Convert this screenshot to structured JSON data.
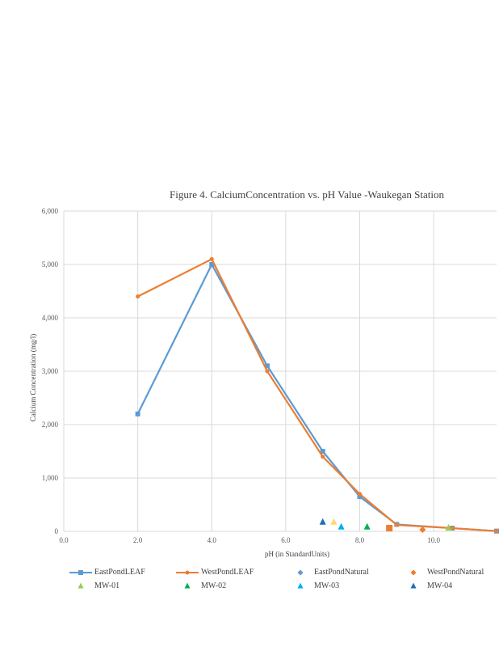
{
  "chart_data": {
    "type": "line",
    "title": "Figure 4. CalciumConcentration  vs. pH Value  -Waukegan   Station",
    "xlabel": "pH (in StandardUnits)",
    "ylabel": "Calcium Concentration  (mg/l)",
    "xlim": [
      0,
      11.7
    ],
    "ylim": [
      0,
      6000
    ],
    "x_ticks": [
      0,
      2,
      4,
      6,
      8,
      10
    ],
    "x_tick_labels": [
      "0.0",
      "2.0",
      "4.0",
      "6.0",
      "8.0",
      "10.0"
    ],
    "y_ticks": [
      0,
      1000,
      2000,
      3000,
      4000,
      5000,
      6000
    ],
    "y_tick_labels": [
      "0",
      "1,000",
      "2,000",
      "3,000",
      "4,000",
      "5,000",
      "6,000"
    ],
    "grid": true,
    "legend_position": "bottom",
    "series": [
      {
        "name": "EastPondLEAF",
        "kind": "line",
        "marker": "square",
        "color": "#5B9BD5",
        "points": [
          [
            2.0,
            2200
          ],
          [
            4.0,
            5000
          ],
          [
            5.5,
            3100
          ],
          [
            7.0,
            1500
          ],
          [
            8.0,
            650
          ],
          [
            9.0,
            130
          ],
          [
            10.5,
            60
          ],
          [
            11.7,
            5
          ]
        ]
      },
      {
        "name": "WestPondLEAF",
        "kind": "line",
        "marker": "circle",
        "color": "#ED7D31",
        "points": [
          [
            2.0,
            4400
          ],
          [
            4.0,
            5100
          ],
          [
            5.5,
            3000
          ],
          [
            7.0,
            1400
          ],
          [
            8.0,
            700
          ],
          [
            9.0,
            120
          ],
          [
            10.5,
            60
          ],
          [
            11.7,
            5
          ]
        ]
      },
      {
        "name": "EastPondNatural",
        "kind": "scatter",
        "marker": "diamond",
        "color": "#5B9BD5",
        "points": [
          [
            8.8,
            60
          ]
        ]
      },
      {
        "name": "WestPondNatural",
        "kind": "scatter",
        "marker": "diamond",
        "color": "#ED7D31",
        "points": [
          [
            9.7,
            30
          ]
        ]
      },
      {
        "name": "MW-01",
        "kind": "scatter",
        "marker": "triangle",
        "color": "#92D050",
        "points": [
          [
            10.4,
            60
          ]
        ]
      },
      {
        "name": "MW-02",
        "kind": "scatter",
        "marker": "triangle",
        "color": "#00B050",
        "points": [
          [
            8.2,
            80
          ]
        ]
      },
      {
        "name": "MW-03",
        "kind": "scatter",
        "marker": "triangle",
        "color": "#00B0F0",
        "points": [
          [
            7.5,
            80
          ]
        ]
      },
      {
        "name": "MW-04",
        "kind": "scatter",
        "marker": "triangle",
        "color": "#1F6EB4",
        "points": [
          [
            7.0,
            170
          ]
        ]
      },
      {
        "name": "",
        "kind": "scatter",
        "marker": "triangle",
        "color": "#FFD966",
        "legend": false,
        "points": [
          [
            7.3,
            170
          ]
        ]
      },
      {
        "name": "",
        "kind": "scatter",
        "marker": "square",
        "color": "#ED7D31",
        "legend": false,
        "points": [
          [
            8.8,
            60
          ]
        ]
      }
    ]
  }
}
